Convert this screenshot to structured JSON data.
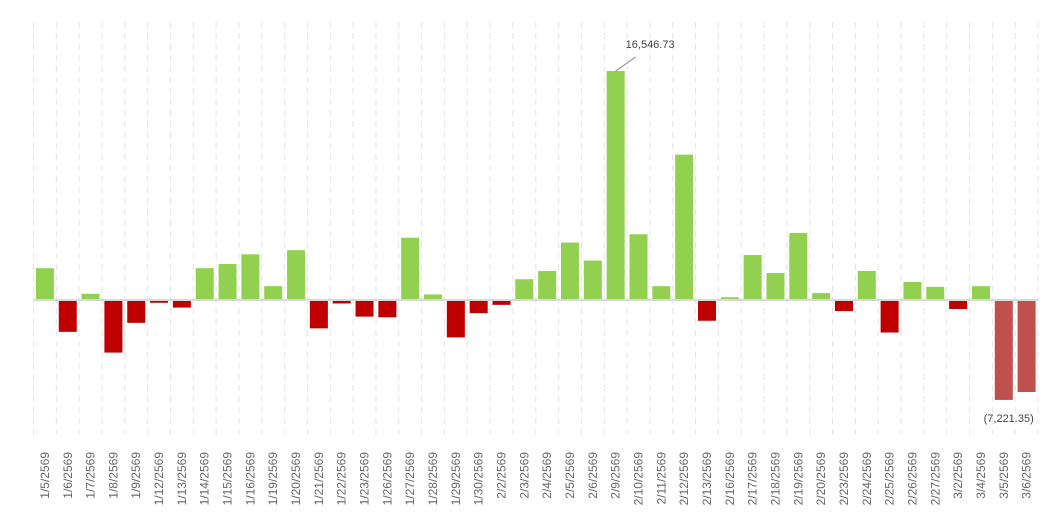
{
  "chart_data": {
    "type": "bar",
    "title": "",
    "xlabel": "",
    "ylabel": "",
    "ylim": [
      -8000,
      17000
    ],
    "grid": "vertical dashed",
    "legend": "none",
    "colors": {
      "positive": "#92d050",
      "negative": "#c00000",
      "negative_latest": "#c0504d",
      "baseline": "#d9d9d9",
      "grid": "#e4e4e4",
      "label": "#666666"
    },
    "categories": [
      "1/5/2569",
      "1/6/2569",
      "1/7/2569",
      "1/8/2569",
      "1/9/2569",
      "1/12/2569",
      "1/13/2569",
      "1/14/2569",
      "1/15/2569",
      "1/16/2569",
      "1/19/2569",
      "1/20/2569",
      "1/21/2569",
      "1/22/2569",
      "1/23/2569",
      "1/26/2569",
      "1/27/2569",
      "1/28/2569",
      "1/29/2569",
      "1/30/2569",
      "2/2/2569",
      "2/3/2569",
      "2/4/2569",
      "2/5/2569",
      "2/6/2569",
      "2/9/2569",
      "2/10/2569",
      "2/11/2569",
      "2/12/2569",
      "2/13/2569",
      "2/16/2569",
      "2/17/2569",
      "2/18/2569",
      "2/19/2569",
      "2/20/2569",
      "2/23/2569",
      "2/24/2569",
      "2/25/2569",
      "2/26/2569",
      "2/27/2569",
      "3/2/2569",
      "3/4/2569",
      "3/5/2569",
      "3/6/2569"
    ],
    "values": [
      2300,
      -2300,
      450,
      -3800,
      -1650,
      -200,
      -550,
      2300,
      2600,
      3300,
      1000,
      3600,
      -2050,
      -250,
      -1200,
      -1250,
      4500,
      400,
      -2700,
      -950,
      -350,
      1500,
      2100,
      4150,
      2850,
      16546.73,
      4750,
      1000,
      10500,
      -1500,
      200,
      3250,
      1950,
      4850,
      500,
      -800,
      2100,
      -2350,
      1300,
      950,
      -650,
      1000,
      -7221.35,
      -6650
    ],
    "annotations": [
      {
        "category": "2/9/2569",
        "text": "16,546.73"
      },
      {
        "category": "3/5/2569",
        "text": "(7,221.35)"
      }
    ]
  }
}
